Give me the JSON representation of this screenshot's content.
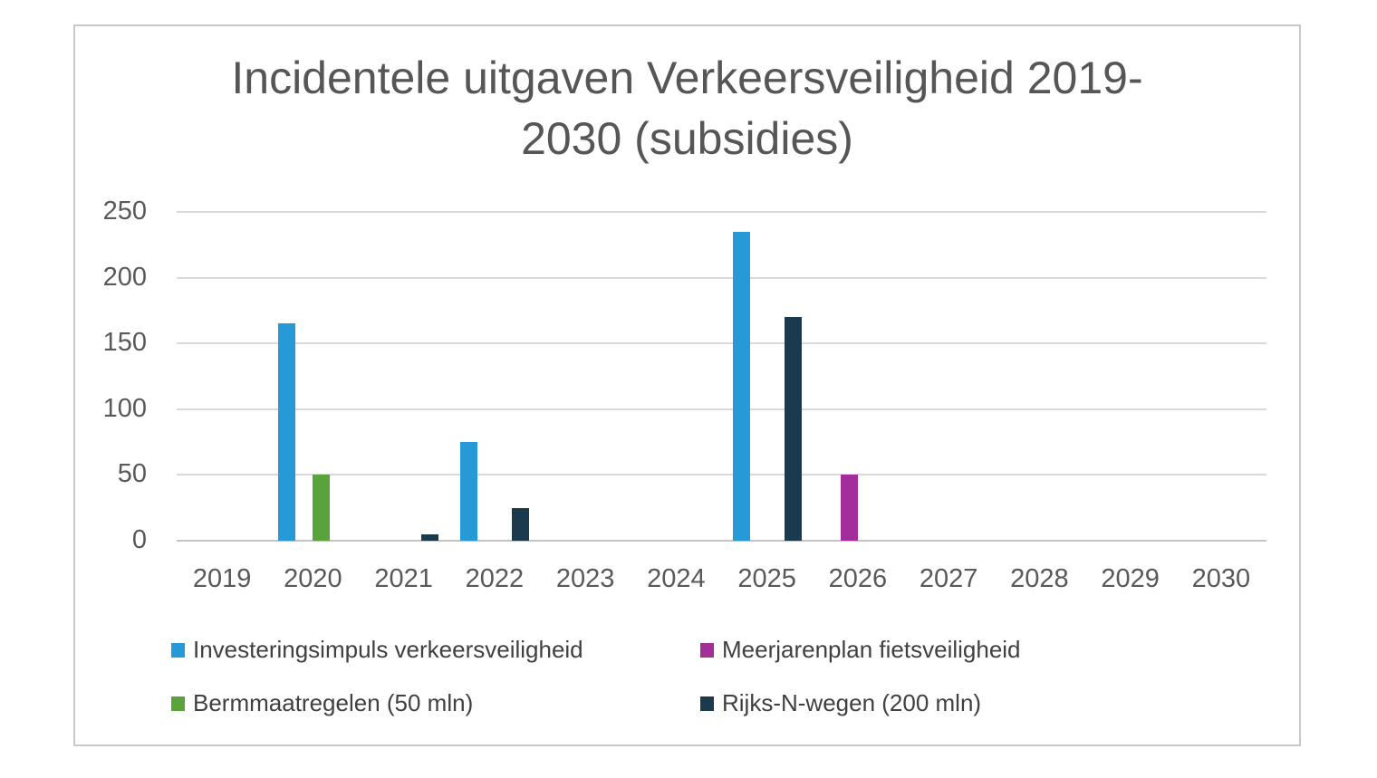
{
  "chart_data": {
    "type": "bar",
    "title": "Incidentele uitgaven Verkeersveiligheid 2019-2030 (subsidies)",
    "categories": [
      "2019",
      "2020",
      "2021",
      "2022",
      "2023",
      "2024",
      "2025",
      "2026",
      "2027",
      "2028",
      "2029",
      "2030"
    ],
    "series": [
      {
        "key": "investeringsimpuls-verkeersveiligheid",
        "name": "Investeringsimpuls verkeersveiligheid",
        "color": "#2699D6",
        "values": [
          0,
          165,
          0,
          75,
          0,
          0,
          235,
          0,
          0,
          0,
          0,
          0
        ]
      },
      {
        "key": "meerjarenplan-fietsveiligheid",
        "name": "Meerjarenplan fietsveiligheid",
        "color": "#A12E9A",
        "values": [
          0,
          0,
          0,
          0,
          0,
          0,
          0,
          50,
          0,
          0,
          0,
          0
        ]
      },
      {
        "key": "bermmaatregelen",
        "name": "Bermmaatregelen (50 mln)",
        "color": "#58A33C",
        "values": [
          0,
          50,
          0,
          0,
          0,
          0,
          0,
          0,
          0,
          0,
          0,
          0
        ]
      },
      {
        "key": "rijks-n-wegen",
        "name": "Rijks-N-wegen (200 mln)",
        "color": "#1C3A4D",
        "values": [
          0,
          0,
          5,
          25,
          0,
          0,
          170,
          0,
          0,
          0,
          0,
          0
        ]
      }
    ],
    "xlabel": "",
    "ylabel": "",
    "ylim": [
      0,
      250
    ],
    "yticks": [
      0,
      50,
      100,
      150,
      200,
      250
    ],
    "grid": true,
    "legend_position": "bottom",
    "colors": {
      "grid": "#D9D9D9",
      "axis_text": "#595959",
      "title_text": "#565656",
      "legend_text": "#404040",
      "frame_border": "#C9C7C7",
      "background": "#FFFFFF"
    }
  }
}
